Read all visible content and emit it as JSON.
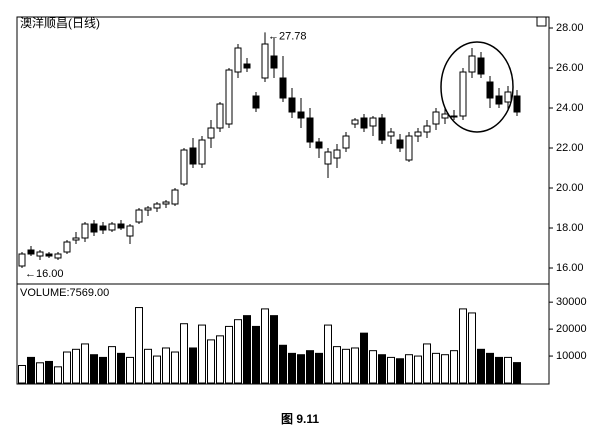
{
  "chart_data": {
    "type": "candlestick",
    "title": "澳洋顺昌(日线)",
    "caption": "图 9.11",
    "annotations": [
      {
        "text": "27.78",
        "index": 27,
        "value": 27.78
      },
      {
        "text": "16.00",
        "index": 0,
        "value": 16.0
      }
    ],
    "open": [
      16.1,
      16.9,
      16.6,
      16.7,
      16.5,
      16.8,
      17.4,
      17.5,
      18.2,
      18.1,
      17.9,
      18.2,
      17.6,
      18.3,
      18.9,
      19.0,
      19.2,
      19.2,
      20.2,
      22.0,
      21.2,
      22.5,
      23.0,
      23.2,
      25.8,
      26.2,
      24.6,
      25.5,
      26.6,
      25.5,
      24.5,
      23.8,
      23.5,
      22.3,
      21.2,
      21.5,
      22.0,
      23.2,
      23.5,
      23.1,
      23.5,
      22.6,
      22.4,
      21.4,
      22.6,
      22.8,
      23.2,
      23.5,
      23.6,
      23.6,
      25.8,
      26.5,
      25.3,
      24.6,
      24.3,
      24.6
    ],
    "high": [
      16.8,
      17.1,
      16.9,
      16.8,
      16.8,
      17.4,
      17.8,
      18.3,
      18.4,
      18.3,
      18.3,
      18.4,
      18.2,
      19.0,
      19.1,
      19.3,
      19.4,
      20.0,
      22.0,
      22.5,
      22.6,
      23.4,
      24.3,
      26.0,
      27.2,
      26.5,
      24.8,
      27.78,
      27.5,
      26.6,
      25.0,
      24.5,
      24.0,
      22.5,
      22.0,
      22.2,
      22.8,
      23.5,
      23.7,
      23.6,
      23.7,
      23.0,
      22.7,
      22.8,
      23.0,
      23.4,
      24.0,
      24.0,
      23.9,
      26.0,
      27.0,
      26.8,
      25.6,
      25.0,
      25.1,
      24.9
    ],
    "low": [
      16.0,
      16.6,
      16.4,
      16.5,
      16.4,
      16.7,
      17.2,
      17.3,
      17.6,
      17.7,
      17.8,
      17.9,
      17.2,
      18.2,
      18.6,
      18.8,
      19.0,
      19.1,
      20.1,
      21.0,
      21.0,
      22.0,
      22.8,
      23.0,
      25.5,
      25.8,
      23.8,
      25.3,
      25.5,
      24.3,
      23.5,
      23.0,
      22.0,
      21.5,
      20.5,
      21.0,
      21.8,
      23.0,
      22.8,
      22.6,
      22.2,
      22.2,
      21.8,
      21.3,
      22.3,
      22.5,
      22.9,
      23.2,
      23.4,
      23.4,
      25.5,
      25.5,
      24.0,
      24.0,
      23.9,
      23.6
    ],
    "close": [
      16.7,
      16.7,
      16.8,
      16.6,
      16.7,
      17.3,
      17.5,
      18.2,
      17.8,
      17.9,
      18.2,
      18.0,
      18.1,
      18.9,
      19.0,
      19.2,
      19.3,
      19.9,
      21.9,
      21.2,
      22.4,
      23.0,
      24.2,
      25.9,
      27.0,
      26.0,
      24.0,
      27.2,
      26.0,
      24.5,
      23.8,
      23.5,
      22.3,
      22.0,
      21.8,
      21.9,
      22.6,
      23.4,
      23.0,
      23.5,
      22.4,
      22.8,
      22.0,
      22.6,
      22.8,
      23.1,
      23.8,
      23.7,
      23.6,
      25.8,
      26.6,
      25.7,
      24.5,
      24.2,
      24.8,
      23.8
    ],
    "ylim": [
      15.2,
      28.55
    ],
    "yticks": [
      {
        "value": 16,
        "label": "16.00"
      },
      {
        "value": 18,
        "label": "18.00"
      },
      {
        "value": 20,
        "label": "20.00"
      },
      {
        "value": 22,
        "label": "22.00"
      },
      {
        "value": 24,
        "label": "24.00"
      },
      {
        "value": 26,
        "label": "26.00"
      },
      {
        "value": 28,
        "label": "28.00"
      }
    ],
    "volume_label": "VOLUME:7569.00",
    "volume": [
      6500,
      9500,
      7500,
      8000,
      6000,
      11500,
      12500,
      14500,
      10500,
      9500,
      13500,
      11000,
      9500,
      28000,
      12500,
      10000,
      13000,
      11500,
      22000,
      13000,
      21500,
      16000,
      17500,
      21000,
      23500,
      25000,
      21000,
      27500,
      25000,
      14000,
      11000,
      10500,
      12000,
      11000,
      21500,
      13500,
      12500,
      13000,
      18500,
      12000,
      10500,
      9500,
      9000,
      10500,
      10000,
      14500,
      11000,
      10500,
      12000,
      27500,
      26000,
      12500,
      11000,
      9500,
      9500,
      7569
    ],
    "volume_ylim": [
      0,
      36000
    ],
    "volume_ticks": [
      10000,
      20000,
      30000
    ]
  }
}
